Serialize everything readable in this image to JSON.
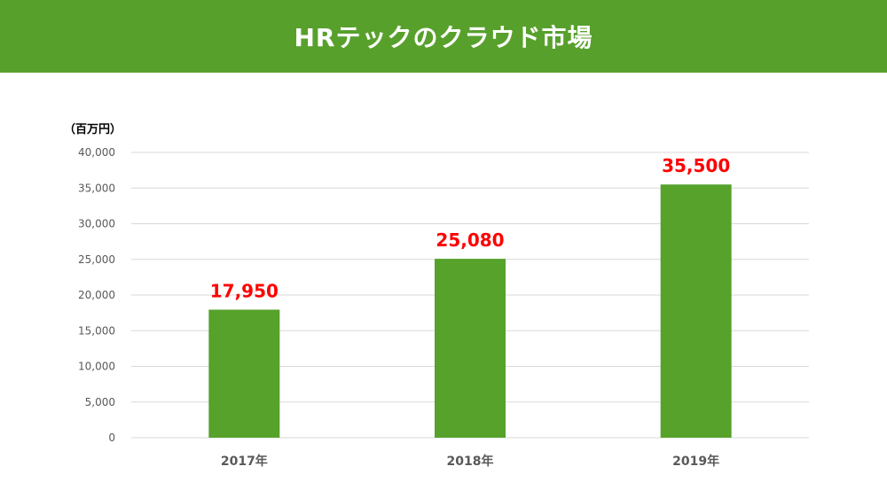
{
  "header": {
    "title": "HRテックのクラウド市場"
  },
  "colors": {
    "header_bg": "#58a02c",
    "bar": "#56a22b",
    "value_label": "#ff0000",
    "grid": "#d9d9d9",
    "axis_text": "#595959"
  },
  "chart_data": {
    "type": "bar",
    "title": "",
    "unit_label": "（百万円）",
    "categories": [
      "2017年",
      "2018年",
      "2019年"
    ],
    "values": [
      17950,
      25080,
      35500
    ],
    "value_labels": [
      "17,950",
      "25,080",
      "35,500"
    ],
    "yticks": [
      "0",
      "5,000",
      "10,000",
      "15,000",
      "20,000",
      "25,000",
      "30,000",
      "35,000",
      "40,000"
    ],
    "ylim": [
      0,
      40000
    ],
    "ystep": 5000,
    "grid": true,
    "legend": "none"
  }
}
